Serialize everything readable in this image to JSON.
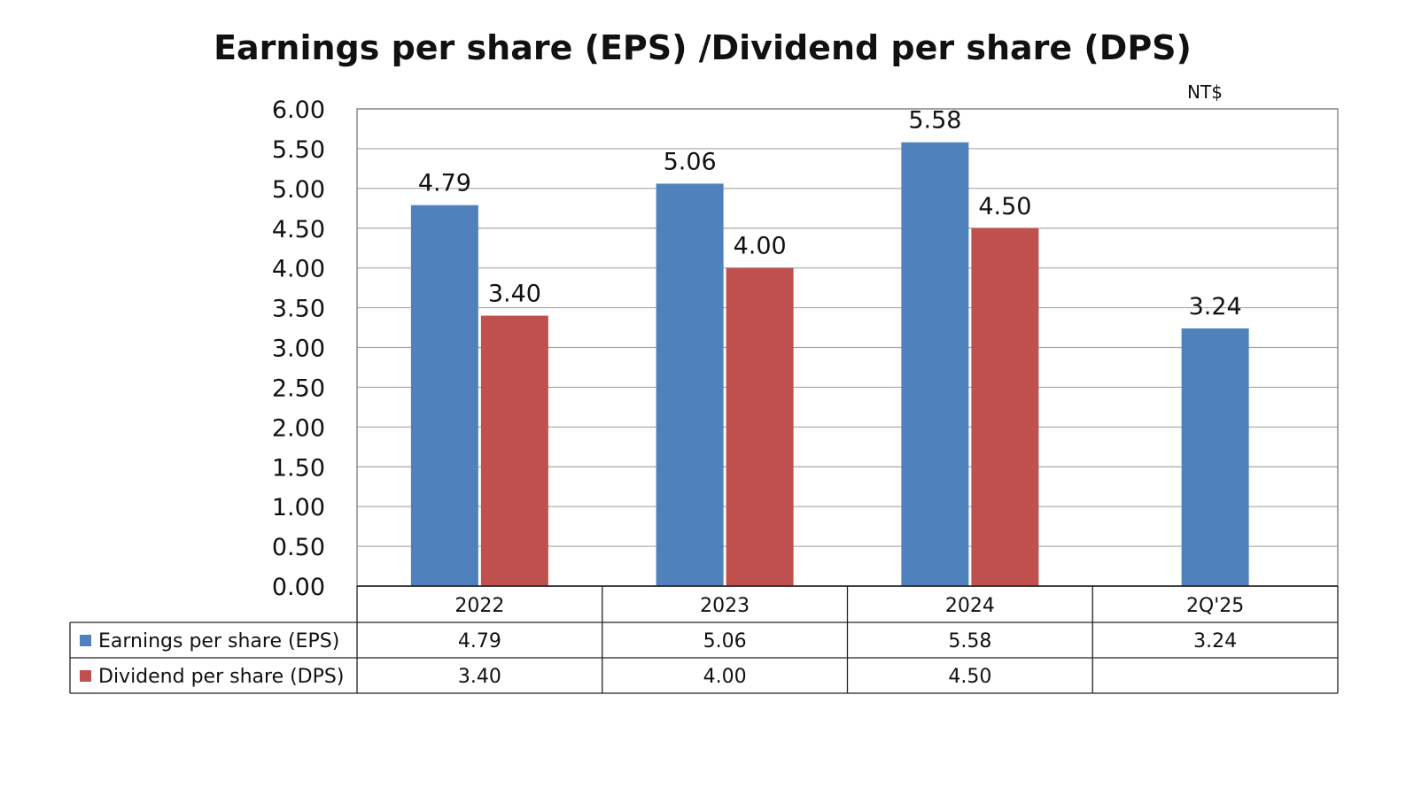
{
  "chart_data": {
    "type": "bar",
    "title": "Earnings per share (EPS) /Dividend per share (DPS)",
    "unit": "NT$",
    "categories": [
      "2022",
      "2023",
      "2024",
      "2Q'25"
    ],
    "series": [
      {
        "name": "Earnings per share (EPS)",
        "color": "#4f81bd",
        "values": [
          4.79,
          5.06,
          5.58,
          3.24
        ],
        "labels": [
          "4.79",
          "5.06",
          "5.58",
          "3.24"
        ]
      },
      {
        "name": "Dividend per share (DPS)",
        "color": "#c0504d",
        "values": [
          3.4,
          4.0,
          4.5,
          null
        ],
        "labels": [
          "3.40",
          "4.00",
          "4.50",
          ""
        ]
      }
    ],
    "ylim": [
      0,
      6
    ],
    "yticks": [
      "0.00",
      "0.50",
      "1.00",
      "1.50",
      "2.00",
      "2.50",
      "3.00",
      "3.50",
      "4.00",
      "4.50",
      "5.00",
      "5.50",
      "6.00"
    ],
    "grid": true,
    "legend": "data-table-below"
  }
}
